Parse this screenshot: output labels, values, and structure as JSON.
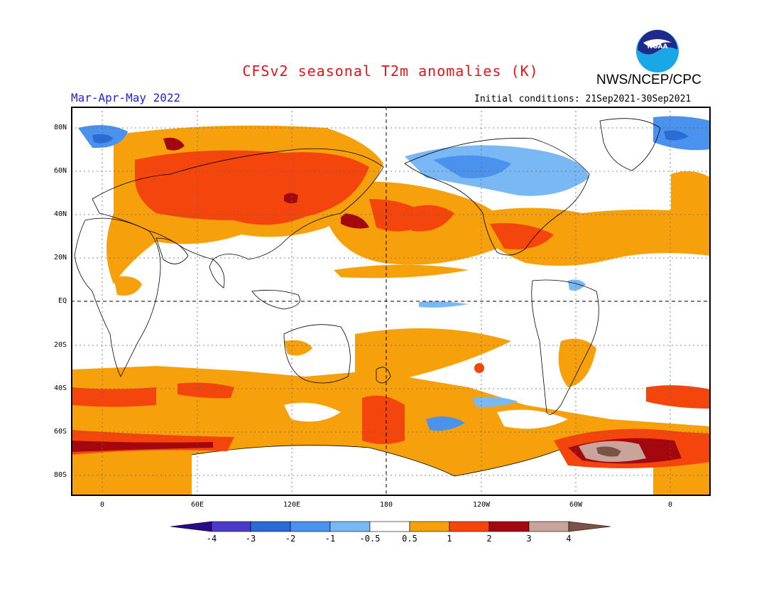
{
  "header": {
    "title": "CFSv2 seasonal T2m anomalies (K)",
    "org": "NWS/NCEP/CPC",
    "season": "Mar-Apr-May 2022",
    "initial_conditions": "Initial conditions: 21Sep2021-30Sep2021",
    "logo_text": "NOAA"
  },
  "axes": {
    "lat_labels": [
      "80N",
      "60N",
      "40N",
      "20N",
      "EQ",
      "20S",
      "40S",
      "60S",
      "80S"
    ],
    "lon_labels": [
      "0",
      "60E",
      "120E",
      "180",
      "120W",
      "60W",
      "0"
    ]
  },
  "colorbar": {
    "labels": [
      "-4",
      "-3",
      "-2",
      "-1",
      "-0.5",
      "0.5",
      "1",
      "2",
      "3",
      "4"
    ],
    "colors": {
      "lt_neg4": "#2a0a8c",
      "neg4_neg3": "#4a3bc8",
      "neg3_neg2": "#2b6bd6",
      "neg2_neg1": "#4a92ee",
      "neg1_neg05": "#7ab8f5",
      "neutral": "#ffffff",
      "p05_1": "#f6a10c",
      "p1_2": "#f4450d",
      "p2_3": "#a3080f",
      "p3_4": "#c8a49a",
      "gt4": "#7b5346"
    }
  },
  "colors": {
    "title": "#e8111a",
    "season": "#2222dd"
  }
}
